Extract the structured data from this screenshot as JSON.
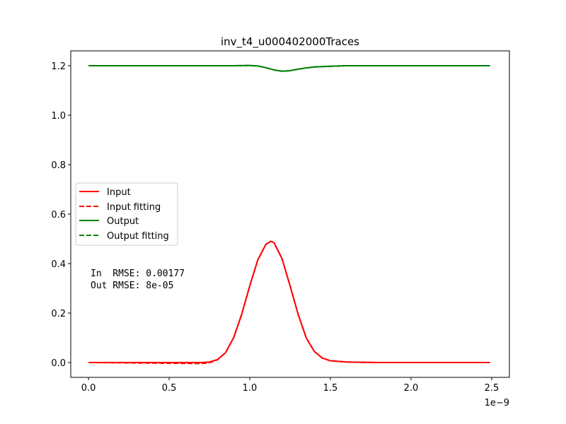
{
  "chart_data": {
    "type": "line",
    "title": "inv_t4_u000402000Traces",
    "xlabel": "",
    "ylabel": "",
    "x_offset_label": "1e−9",
    "xlim": [
      -0.11,
      2.61
    ],
    "ylim": [
      -0.06,
      1.26
    ],
    "xticks": [
      0.0,
      0.5,
      1.0,
      1.5,
      2.0,
      2.5
    ],
    "xtick_labels": [
      "0.0",
      "0.5",
      "1.0",
      "1.5",
      "2.0",
      "2.5"
    ],
    "yticks": [
      0.0,
      0.2,
      0.4,
      0.6,
      0.8,
      1.0,
      1.2
    ],
    "ytick_labels": [
      "0.0",
      "0.2",
      "0.4",
      "0.6",
      "0.8",
      "1.0",
      "1.2"
    ],
    "grid": false,
    "legend_position": "center-left",
    "annotations": [
      "In  RMSE: 0.00177",
      "Out RMSE: 8e-05"
    ],
    "series": [
      {
        "name": "Input",
        "color": "#ff0000",
        "style": "solid",
        "x": [
          0.0,
          0.5,
          0.7,
          0.75,
          0.8,
          0.85,
          0.9,
          0.95,
          1.0,
          1.05,
          1.1,
          1.13,
          1.15,
          1.2,
          1.25,
          1.3,
          1.35,
          1.4,
          1.45,
          1.5,
          1.6,
          1.8,
          2.0,
          2.49
        ],
        "y": [
          0.0,
          0.0,
          0.0,
          0.002,
          0.012,
          0.04,
          0.1,
          0.195,
          0.31,
          0.415,
          0.478,
          0.49,
          0.485,
          0.42,
          0.31,
          0.195,
          0.1,
          0.045,
          0.018,
          0.007,
          0.002,
          0.0,
          0.0,
          0.0
        ]
      },
      {
        "name": "Input fitting",
        "color": "#ff0000",
        "style": "dashed",
        "x": [
          0.0,
          0.5,
          0.7,
          0.75,
          0.8,
          0.85,
          0.9,
          0.95,
          1.0,
          1.05,
          1.1,
          1.13,
          1.15,
          1.2,
          1.25,
          1.3,
          1.35,
          1.4,
          1.45,
          1.5,
          1.6,
          1.8,
          2.0,
          2.49
        ],
        "y": [
          0.0,
          -0.003,
          -0.004,
          -0.001,
          0.011,
          0.04,
          0.1,
          0.195,
          0.31,
          0.415,
          0.478,
          0.49,
          0.485,
          0.42,
          0.31,
          0.195,
          0.1,
          0.045,
          0.018,
          0.007,
          0.002,
          0.0,
          0.0,
          0.0
        ]
      },
      {
        "name": "Output",
        "color": "#008000",
        "style": "solid",
        "x": [
          0.0,
          0.5,
          0.9,
          1.0,
          1.05,
          1.1,
          1.15,
          1.2,
          1.25,
          1.3,
          1.35,
          1.4,
          1.5,
          1.6,
          1.8,
          2.0,
          2.49
        ],
        "y": [
          1.2,
          1.2,
          1.2,
          1.201,
          1.199,
          1.192,
          1.183,
          1.178,
          1.18,
          1.186,
          1.191,
          1.195,
          1.198,
          1.2,
          1.2,
          1.2,
          1.2
        ]
      },
      {
        "name": "Output fitting",
        "color": "#008000",
        "style": "dashed",
        "x": [
          0.0,
          0.5,
          0.9,
          1.0,
          1.05,
          1.1,
          1.15,
          1.2,
          1.25,
          1.3,
          1.35,
          1.4,
          1.5,
          1.6,
          1.8,
          2.0,
          2.49
        ],
        "y": [
          1.2,
          1.2,
          1.2,
          1.201,
          1.199,
          1.192,
          1.183,
          1.178,
          1.18,
          1.186,
          1.191,
          1.195,
          1.198,
          1.2,
          1.2,
          1.2,
          1.2
        ]
      }
    ]
  }
}
